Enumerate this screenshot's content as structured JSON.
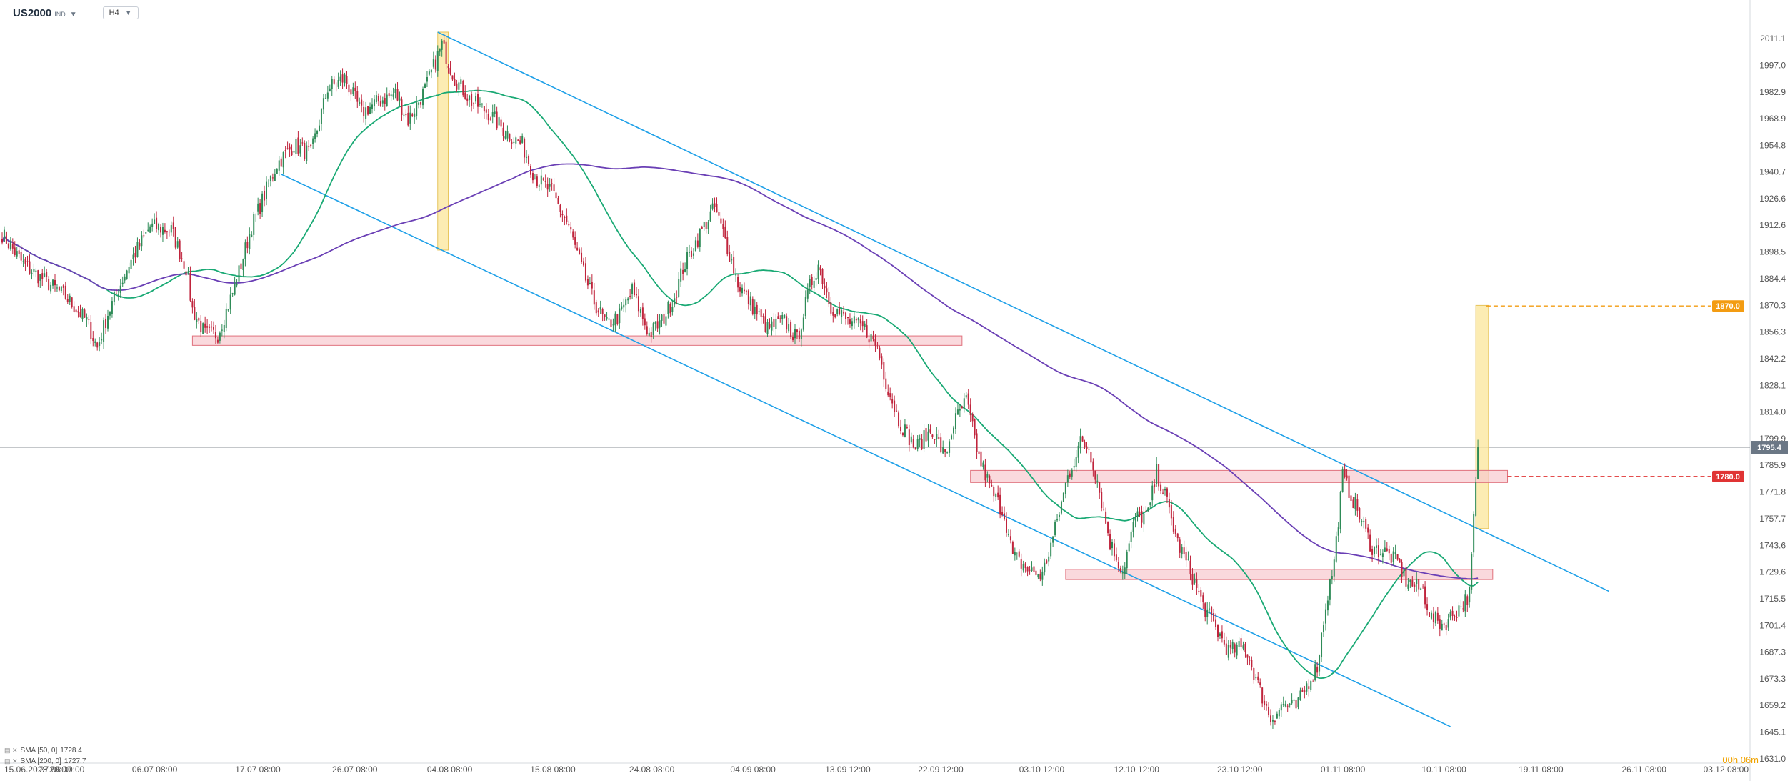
{
  "toolbar": {
    "symbol": "US2000",
    "symbol_suffix": "IND",
    "timeframe": "H4"
  },
  "legend": [
    {
      "icon": "sma-icon",
      "text": "SMA [50, 0]",
      "value": "1728.4"
    },
    {
      "icon": "sma-icon",
      "text": "SMA [200, 0]",
      "value": "1727.7"
    }
  ],
  "countdown": "00h 06m",
  "colors": {
    "bull": "#2e8b57",
    "bear": "#c0243c",
    "sma50": "#19a974",
    "sma200": "#6a3fb5",
    "channel": "#1ea0e8",
    "zone_fill": "#f8c9cf",
    "zone_stroke": "#e0707c",
    "highlight": "#fbe59a",
    "target_tag": "#f39c12",
    "level_tag": "#e03434",
    "price_tag": "#6b7785"
  },
  "chart_data": {
    "type": "candlestick",
    "instrument": "US2000",
    "timeframe": "H4",
    "x_ticks": [
      "15.06.2023  20:00",
      "27.06 00:00",
      "06.07 08:00",
      "17.07 08:00",
      "26.07 08:00",
      "04.08 08:00",
      "15.08 08:00",
      "24.08 08:00",
      "04.09 08:00",
      "13.09 12:00",
      "22.09 12:00",
      "03.10 12:00",
      "12.10 12:00",
      "23.10 12:00",
      "01.11 08:00",
      "10.11 08:00",
      "19.11 08:00",
      "26.11 08:00",
      "03.12 08:00"
    ],
    "y_ticks": [
      2011.1,
      1997.0,
      1982.9,
      1968.9,
      1954.8,
      1940.7,
      1926.6,
      1912.6,
      1898.5,
      1884.4,
      1870.3,
      1856.3,
      1842.2,
      1828.1,
      1814.0,
      1799.9,
      1785.9,
      1771.8,
      1757.7,
      1743.6,
      1729.6,
      1715.5,
      1701.4,
      1687.3,
      1673.3,
      1659.2,
      1645.1,
      1631.0
    ],
    "ylim": [
      1631.0,
      2011.1
    ],
    "x_range": [
      "15.06.2023 20:00",
      "03.12 08:00"
    ],
    "anchors": [
      [
        0,
        1908
      ],
      [
        10,
        1892
      ],
      [
        30,
        1875
      ],
      [
        40,
        1862
      ],
      [
        45,
        1848
      ],
      [
        50,
        1866
      ],
      [
        60,
        1892
      ],
      [
        70,
        1912
      ],
      [
        80,
        1910
      ],
      [
        87,
        1890
      ],
      [
        90,
        1868
      ],
      [
        96,
        1855
      ],
      [
        102,
        1855
      ],
      [
        110,
        1880
      ],
      [
        118,
        1912
      ],
      [
        130,
        1945
      ],
      [
        138,
        1955
      ],
      [
        146,
        1950
      ],
      [
        154,
        1985
      ],
      [
        162,
        1990
      ],
      [
        170,
        1972
      ],
      [
        178,
        1978
      ],
      [
        186,
        1982
      ],
      [
        192,
        1968
      ],
      [
        200,
        1984
      ],
      [
        208,
        2008
      ],
      [
        214,
        1990
      ],
      [
        222,
        1978
      ],
      [
        230,
        1972
      ],
      [
        238,
        1962
      ],
      [
        246,
        1955
      ],
      [
        252,
        1938
      ],
      [
        260,
        1930
      ],
      [
        268,
        1912
      ],
      [
        274,
        1890
      ],
      [
        280,
        1872
      ],
      [
        286,
        1860
      ],
      [
        292,
        1865
      ],
      [
        298,
        1878
      ],
      [
        306,
        1855
      ],
      [
        312,
        1862
      ],
      [
        318,
        1875
      ],
      [
        322,
        1890
      ],
      [
        330,
        1908
      ],
      [
        337,
        1922
      ],
      [
        342,
        1905
      ],
      [
        348,
        1882
      ],
      [
        356,
        1868
      ],
      [
        362,
        1858
      ],
      [
        370,
        1862
      ],
      [
        376,
        1852
      ],
      [
        382,
        1880
      ],
      [
        386,
        1892
      ],
      [
        392,
        1870
      ],
      [
        400,
        1862
      ],
      [
        408,
        1858
      ],
      [
        414,
        1848
      ],
      [
        418,
        1830
      ],
      [
        424,
        1810
      ],
      [
        432,
        1795
      ],
      [
        440,
        1805
      ],
      [
        446,
        1790
      ],
      [
        450,
        1808
      ],
      [
        456,
        1820
      ],
      [
        462,
        1790
      ],
      [
        468,
        1772
      ],
      [
        474,
        1760
      ],
      [
        478,
        1738
      ],
      [
        486,
        1730
      ],
      [
        492,
        1728
      ],
      [
        498,
        1752
      ],
      [
        504,
        1780
      ],
      [
        510,
        1798
      ],
      [
        514,
        1795
      ],
      [
        518,
        1778
      ],
      [
        524,
        1745
      ],
      [
        530,
        1730
      ],
      [
        536,
        1758
      ],
      [
        542,
        1760
      ],
      [
        546,
        1782
      ],
      [
        550,
        1770
      ],
      [
        556,
        1745
      ],
      [
        562,
        1730
      ],
      [
        568,
        1712
      ],
      [
        574,
        1700
      ],
      [
        580,
        1688
      ],
      [
        588,
        1690
      ],
      [
        594,
        1670
      ],
      [
        600,
        1652
      ],
      [
        606,
        1660
      ],
      [
        612,
        1658
      ],
      [
        618,
        1672
      ],
      [
        622,
        1680
      ],
      [
        626,
        1712
      ],
      [
        630,
        1735
      ],
      [
        634,
        1780
      ],
      [
        640,
        1765
      ],
      [
        648,
        1742
      ],
      [
        654,
        1740
      ],
      [
        660,
        1735
      ],
      [
        664,
        1725
      ],
      [
        668,
        1722
      ],
      [
        672,
        1720
      ],
      [
        676,
        1705
      ],
      [
        682,
        1702
      ],
      [
        690,
        1712
      ],
      [
        694,
        1718
      ],
      [
        698,
        1795
      ]
    ],
    "last_index": 698,
    "last_price": 1795.4,
    "sma50_last": 1728.4,
    "sma200_last": 1727.7,
    "levels": [
      {
        "label": "1870.0",
        "price": 1870.0,
        "kind": "target"
      },
      {
        "label": "1780.0",
        "price": 1780.0,
        "kind": "resistance"
      }
    ],
    "price_tag": "1795.4",
    "zones": [
      {
        "low": 1849.2,
        "high": 1854.2,
        "from": 90,
        "to": 454
      },
      {
        "low": 1776.8,
        "high": 1783.2,
        "from": 458,
        "to": 712
      },
      {
        "low": 1725.6,
        "high": 1731.0,
        "from": 503,
        "to": 705
      }
    ],
    "channel": [
      {
        "from": [
          206,
          2014.5
        ],
        "to": [
          760,
          1719.4
        ]
      },
      {
        "from": [
          132,
          1939.5
        ],
        "to": [
          685,
          1648.0
        ]
      }
    ],
    "highlights": [
      {
        "from": 206,
        "to": 211,
        "low": 1899.5,
        "high": 2014.5
      },
      {
        "from": 697,
        "to": 703,
        "low": 1752.5,
        "high": 1870.3
      }
    ]
  }
}
